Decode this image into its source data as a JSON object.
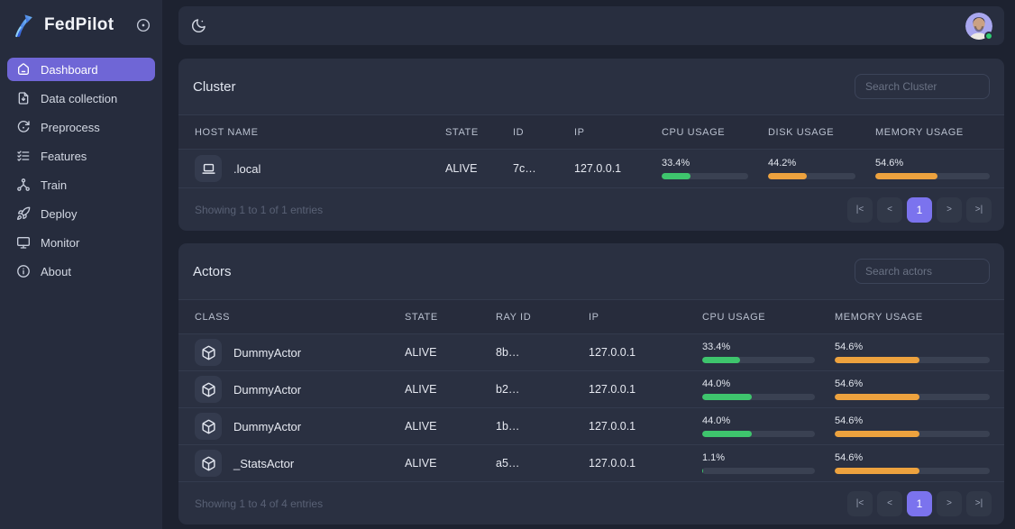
{
  "colors": {
    "accent_purple": "#6f66d6",
    "pagination_active_purple": "#7b73ee",
    "cpu_bar_green": "#3ec56d",
    "disk_bar_orange": "#eda23e",
    "memory_bar_orange": "#eda23e",
    "online_dot_green": "#2ecc71"
  },
  "sidebar": {
    "brand": "FedPilot",
    "brand_icon": "fedpilot-arrow-logo-icon",
    "collapse_icon": "circle-dot-icon",
    "items": [
      {
        "label": "Dashboard",
        "icon": "home-icon",
        "active": true
      },
      {
        "label": "Data collection",
        "icon": "file-import-icon",
        "active": false
      },
      {
        "label": "Preprocess",
        "icon": "refresh-icon",
        "active": false
      },
      {
        "label": "Features",
        "icon": "list-check-icon",
        "active": false
      },
      {
        "label": "Train",
        "icon": "hierarchy-icon",
        "active": false
      },
      {
        "label": "Deploy",
        "icon": "rocket-icon",
        "active": false
      },
      {
        "label": "Monitor",
        "icon": "monitor-icon",
        "active": false
      },
      {
        "label": "About",
        "icon": "info-icon",
        "active": false
      }
    ]
  },
  "topbar": {
    "theme_toggle_icon": "moon-icon",
    "avatar_status": "online"
  },
  "cluster": {
    "title": "Cluster",
    "search_placeholder": "Search Cluster",
    "columns": [
      "HOST NAME",
      "STATE",
      "ID",
      "IP",
      "CPU USAGE",
      "DISK USAGE",
      "MEMORY USAGE"
    ],
    "rows": [
      {
        "icon": "laptop-icon",
        "host_name": ".local",
        "state": "ALIVE",
        "id": "7c…",
        "ip": "127.0.0.1",
        "cpu": {
          "label": "33.4%",
          "pct": 33.4,
          "color": "#3ec56d"
        },
        "disk": {
          "label": "44.2%",
          "pct": 44.2,
          "color": "#eda23e"
        },
        "memory": {
          "label": "54.6%",
          "pct": 54.6,
          "color": "#eda23e"
        }
      }
    ],
    "footer_text": "Showing 1 to 1 of 1 entries",
    "pagination": [
      "|<",
      "<",
      "1",
      ">",
      ">|"
    ],
    "active_page": "1"
  },
  "actors": {
    "title": "Actors",
    "search_placeholder": "Search actors",
    "columns": [
      "CLASS",
      "STATE",
      "RAY ID",
      "IP",
      "CPU USAGE",
      "MEMORY USAGE"
    ],
    "rows": [
      {
        "icon": "cube-icon",
        "class": "DummyActor",
        "state": "ALIVE",
        "ray_id": "8b…",
        "ip": "127.0.0.1",
        "cpu": {
          "label": "33.4%",
          "pct": 33.4,
          "color": "#3ec56d"
        },
        "memory": {
          "label": "54.6%",
          "pct": 54.6,
          "color": "#eda23e"
        }
      },
      {
        "icon": "cube-icon",
        "class": "DummyActor",
        "state": "ALIVE",
        "ray_id": "b2…",
        "ip": "127.0.0.1",
        "cpu": {
          "label": "44.0%",
          "pct": 44.0,
          "color": "#3ec56d"
        },
        "memory": {
          "label": "54.6%",
          "pct": 54.6,
          "color": "#eda23e"
        }
      },
      {
        "icon": "cube-icon",
        "class": "DummyActor",
        "state": "ALIVE",
        "ray_id": "1b…",
        "ip": "127.0.0.1",
        "cpu": {
          "label": "44.0%",
          "pct": 44.0,
          "color": "#3ec56d"
        },
        "memory": {
          "label": "54.6%",
          "pct": 54.6,
          "color": "#eda23e"
        }
      },
      {
        "icon": "cube-icon",
        "class": "_StatsActor",
        "state": "ALIVE",
        "ray_id": "a5…",
        "ip": "127.0.0.1",
        "cpu": {
          "label": "1.1%",
          "pct": 1.1,
          "color": "#3ec56d"
        },
        "memory": {
          "label": "54.6%",
          "pct": 54.6,
          "color": "#eda23e"
        }
      }
    ],
    "footer_text": "Showing 1 to 4 of 4 entries",
    "pagination": [
      "|<",
      "<",
      "1",
      ">",
      ">|"
    ],
    "active_page": "1"
  }
}
